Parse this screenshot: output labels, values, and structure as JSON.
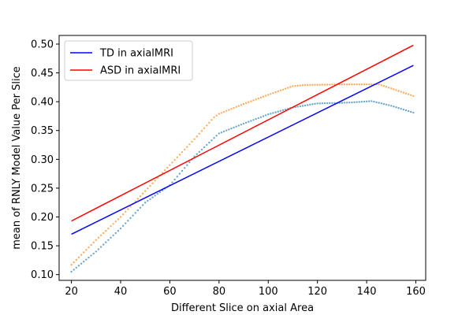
{
  "chart_data": {
    "type": "scatter",
    "title": "",
    "xlabel": "Different Slice on axial Area",
    "ylabel": "mean of RNLY Model Value Per Slice",
    "xlim": [
      15,
      164
    ],
    "ylim": [
      0.09,
      0.515
    ],
    "xticks": [
      20,
      40,
      60,
      80,
      100,
      120,
      140,
      160
    ],
    "yticks": [
      0.1,
      0.15,
      0.2,
      0.25,
      0.3,
      0.35,
      0.4,
      0.45,
      0.5
    ],
    "grid": false,
    "legend": "top-left",
    "scatter_series": [
      {
        "color": "#1f77b4",
        "x_range": [
          20,
          159
        ],
        "anchors": [
          [
            20,
            0.105
          ],
          [
            30,
            0.14
          ],
          [
            40,
            0.18
          ],
          [
            50,
            0.225
          ],
          [
            60,
            0.255
          ],
          [
            70,
            0.305
          ],
          [
            80,
            0.345
          ],
          [
            90,
            0.362
          ],
          [
            100,
            0.378
          ],
          [
            110,
            0.39
          ],
          [
            120,
            0.397
          ],
          [
            130,
            0.398
          ],
          [
            135,
            0.399
          ],
          [
            142,
            0.401
          ],
          [
            150,
            0.393
          ],
          [
            159,
            0.381
          ]
        ]
      },
      {
        "color": "#ff7f0e",
        "x_range": [
          20,
          159
        ],
        "anchors": [
          [
            20,
            0.117
          ],
          [
            30,
            0.16
          ],
          [
            40,
            0.2
          ],
          [
            50,
            0.245
          ],
          [
            60,
            0.29
          ],
          [
            70,
            0.335
          ],
          [
            78,
            0.373
          ],
          [
            80,
            0.379
          ],
          [
            90,
            0.396
          ],
          [
            100,
            0.412
          ],
          [
            110,
            0.427
          ],
          [
            115,
            0.429
          ],
          [
            130,
            0.43
          ],
          [
            145,
            0.43
          ],
          [
            150,
            0.423
          ],
          [
            159,
            0.41
          ]
        ]
      }
    ],
    "lines": [
      {
        "name": "TD in axialMRI",
        "color": "#0000ff",
        "x": [
          20,
          159
        ],
        "y": [
          0.17,
          0.463
        ]
      },
      {
        "name": "ASD in axialMRI",
        "color": "#ff0000",
        "x": [
          20,
          159
        ],
        "y": [
          0.193,
          0.498
        ]
      }
    ]
  }
}
